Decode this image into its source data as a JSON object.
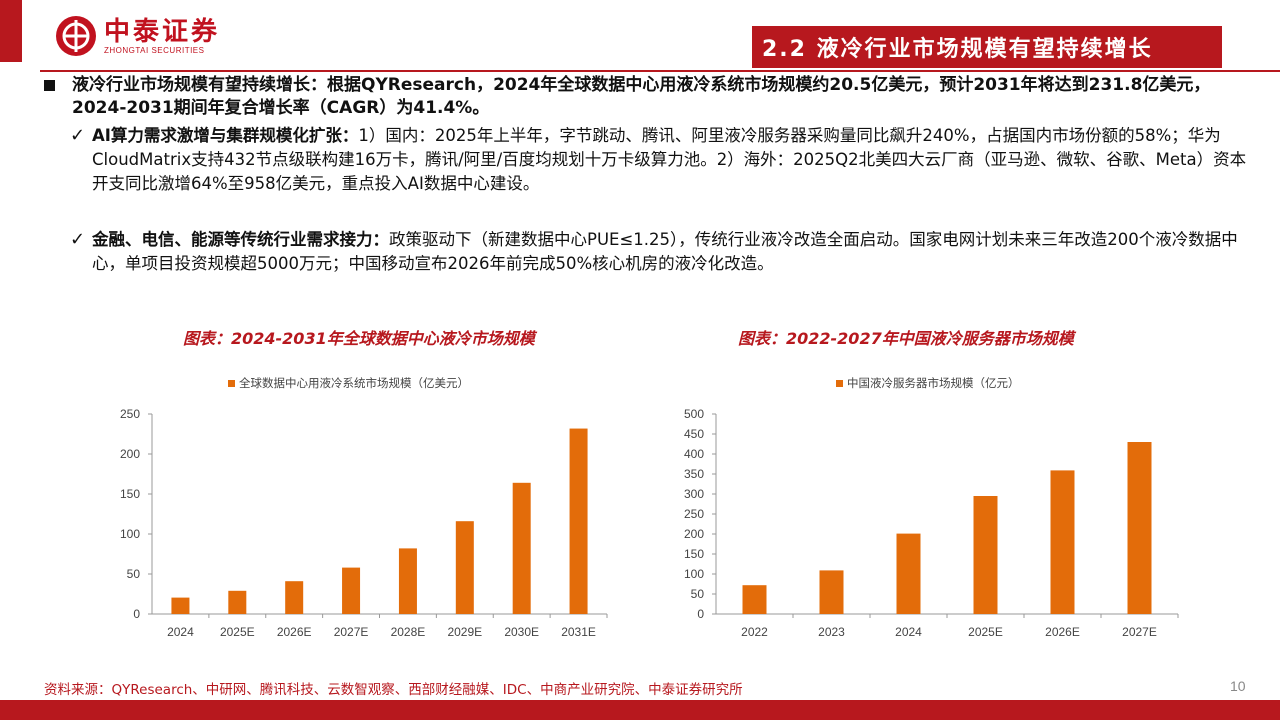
{
  "brand": {
    "name_cn": "中泰证券",
    "name_en": "ZHONGTAI SECURITIES",
    "color": "#b7181e"
  },
  "header": {
    "title": "2.2 液冷行业市场规模有望持续增长"
  },
  "summary": {
    "lead": "液冷行业市场规模有望持续增长：根据QYResearch，2024年全球数据中心用液冷系统市场规模约20.5亿美元，预计2031年将达到231.8亿美元，2024-2031期间年复合增长率（CAGR）为41.4%。"
  },
  "points": [
    {
      "heading": "AI算力需求激增与集群规模化扩张：",
      "text": "1）国内：2025年上半年，字节跳动、腾讯、阿里液冷服务器采购量同比飙升240%，占据国内市场份额的58%；华为CloudMatrix支持432节点级联构建16万卡，腾讯/阿里/百度均规划十万卡级算力池。2）海外：2025Q2北美四大云厂商（亚马逊、微软、谷歌、Meta）资本开支同比激增64%至958亿美元，重点投入AI数据中心建设。"
    },
    {
      "heading": "金融、电信、能源等传统行业需求接力：",
      "text": "政策驱动下（新建数据中心PUE≤1.25），传统行业液冷改造全面启动。国家电网计划未来三年改造200个液冷数据中心，单项目投资规模超5000万元；中国移动宣布2026年前完成50%核心机房的液冷化改造。"
    }
  ],
  "chart_data": [
    {
      "type": "bar",
      "title": "图表：2024-2031年全球数据中心液冷市场规模",
      "categories": [
        "2024",
        "2025E",
        "2026E",
        "2027E",
        "2028E",
        "2029E",
        "2030E",
        "2031E"
      ],
      "series": [
        {
          "name": "全球数据中心用液冷系统市场规模（亿美元）",
          "values": [
            20.5,
            29,
            41,
            58,
            82,
            116,
            164,
            231.8
          ],
          "color": "#e36c0a"
        }
      ],
      "ylim": [
        0,
        250
      ],
      "yticks": [
        0,
        50,
        100,
        150,
        200,
        250
      ],
      "grid": false,
      "legend": "top-left"
    },
    {
      "type": "bar",
      "title": "图表：2022-2027年中国液冷服务器市场规模",
      "categories": [
        "2022",
        "2023",
        "2024",
        "2025E",
        "2026E",
        "2027E"
      ],
      "series": [
        {
          "name": "中国液冷服务器市场规模（亿元）",
          "values": [
            72,
            109,
            201,
            295,
            359,
            430
          ],
          "color": "#e36c0a"
        }
      ],
      "ylim": [
        0,
        500
      ],
      "yticks": [
        0,
        50,
        100,
        150,
        200,
        250,
        300,
        350,
        400,
        450,
        500
      ],
      "grid": false,
      "legend": "top-left"
    }
  ],
  "footer": {
    "source": "资料来源：QYResearch、中研网、腾讯科技、云数智观察、西部财经融媒、IDC、中商产业研究院、中泰证券研究所",
    "page": "10"
  }
}
